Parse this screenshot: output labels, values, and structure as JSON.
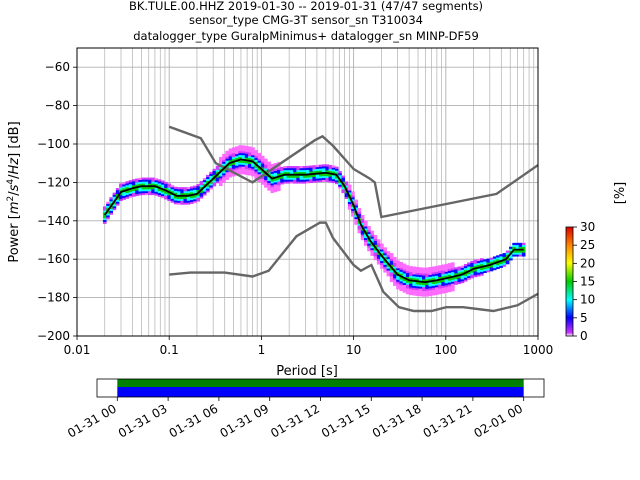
{
  "chart_data": {
    "type": "heatmap",
    "title_lines": [
      "BK.TULE.00.HHZ   2019-01-30 -- 2019-01-31  (47/47 segments)",
      "sensor_type CMG-3T sensor_sn T310034",
      "datalogger_type GuralpMinimus+ datalogger_sn MINP-DF59"
    ],
    "xlabel": "Period [s]",
    "ylabel_parts": [
      "Power [",
      "m",
      "2",
      "/",
      "s",
      "4",
      "/",
      "Hz",
      "] [dB]"
    ],
    "x_scale": "log",
    "xlim": [
      0.01,
      1000
    ],
    "ylim": [
      -200,
      -50
    ],
    "x_ticks": [
      {
        "value": 0.01,
        "label": "0.01"
      },
      {
        "value": 0.1,
        "label": "0.1"
      },
      {
        "value": 1,
        "label": "1"
      },
      {
        "value": 10,
        "label": "10"
      },
      {
        "value": 100,
        "label": "100"
      },
      {
        "value": 1000,
        "label": "1000"
      }
    ],
    "y_ticks": [
      {
        "value": -60,
        "label": "−60"
      },
      {
        "value": -80,
        "label": "−80"
      },
      {
        "value": -100,
        "label": "−100"
      },
      {
        "value": -120,
        "label": "−120"
      },
      {
        "value": -140,
        "label": "−140"
      },
      {
        "value": -160,
        "label": "−160"
      },
      {
        "value": -180,
        "label": "−180"
      },
      {
        "value": -200,
        "label": "−200"
      }
    ],
    "grid": true,
    "high_noise_model": [
      [
        0.1,
        -91
      ],
      [
        0.22,
        -97
      ],
      [
        0.32,
        -110
      ],
      [
        0.8,
        -120
      ],
      [
        3.8,
        -98
      ],
      [
        4.6,
        -96
      ],
      [
        6,
        -101
      ],
      [
        10,
        -113
      ],
      [
        15,
        -118
      ],
      [
        17,
        -120
      ],
      [
        20,
        -138
      ],
      [
        355,
        -126
      ],
      [
        1000,
        -111
      ]
    ],
    "low_noise_model": [
      [
        0.1,
        -168
      ],
      [
        0.17,
        -167
      ],
      [
        0.4,
        -167
      ],
      [
        0.8,
        -169
      ],
      [
        1.2,
        -166
      ],
      [
        2.4,
        -148
      ],
      [
        4.3,
        -141
      ],
      [
        5,
        -141
      ],
      [
        6,
        -149
      ],
      [
        10,
        -163
      ],
      [
        12,
        -166
      ],
      [
        15.6,
        -163
      ],
      [
        21,
        -177
      ],
      [
        31,
        -185
      ],
      [
        45,
        -187
      ],
      [
        70,
        -187
      ],
      [
        101,
        -185
      ],
      [
        154,
        -185
      ],
      [
        328,
        -187
      ],
      [
        600,
        -184
      ],
      [
        1000,
        -178
      ]
    ],
    "mean_curve": [
      [
        0.02,
        -137
      ],
      [
        0.03,
        -125
      ],
      [
        0.04,
        -123
      ],
      [
        0.05,
        -122
      ],
      [
        0.07,
        -122
      ],
      [
        0.09,
        -124
      ],
      [
        0.12,
        -127
      ],
      [
        0.16,
        -127
      ],
      [
        0.2,
        -126
      ],
      [
        0.3,
        -118
      ],
      [
        0.45,
        -110
      ],
      [
        0.6,
        -108
      ],
      [
        0.8,
        -109
      ],
      [
        1.0,
        -113
      ],
      [
        1.3,
        -118
      ],
      [
        1.8,
        -116
      ],
      [
        3,
        -116
      ],
      [
        5,
        -115
      ],
      [
        6.5,
        -116
      ],
      [
        8,
        -122
      ],
      [
        10,
        -132
      ],
      [
        12,
        -142
      ],
      [
        15,
        -150
      ],
      [
        20,
        -158
      ],
      [
        30,
        -168
      ],
      [
        40,
        -171
      ],
      [
        60,
        -172
      ],
      [
        80,
        -171
      ],
      [
        100,
        -170
      ],
      [
        150,
        -168
      ],
      [
        200,
        -165
      ],
      [
        300,
        -163
      ],
      [
        450,
        -160
      ],
      [
        550,
        -155
      ],
      [
        700,
        -155
      ]
    ],
    "colorbar": {
      "label": "[%]",
      "range": [
        0,
        30
      ],
      "ticks": [
        0,
        5,
        10,
        15,
        20,
        25,
        30
      ]
    },
    "coverage": {
      "ticks": [
        "01-31 00",
        "01-31 03",
        "01-31 06",
        "01-31 09",
        "01-31 12",
        "01-31 15",
        "01-31 18",
        "01-31 21",
        "02-01 00"
      ],
      "data_start_hours": 0,
      "data_end_hours": 24,
      "window_start_hours": -1.2,
      "window_end_hours": 25.2
    },
    "colors": {
      "hnm_lnm": "#666666",
      "mean": "#000000",
      "coverage_data": "#008000",
      "coverage_trace": "#0000ff"
    }
  }
}
